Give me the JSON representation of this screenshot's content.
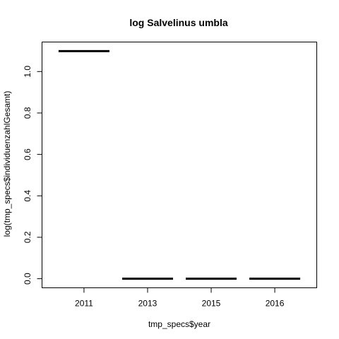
{
  "chart_data": {
    "type": "box",
    "title": "log Salvelinus umbla",
    "xlabel": "tmp_specs$year",
    "ylabel": "log(tmp_specs$individuenzahlGesamt)",
    "categories": [
      "2011",
      "2013",
      "2015",
      "2016"
    ],
    "values": [
      1.0986,
      0.0,
      0.0,
      0.0
    ],
    "yticks": [
      "0.0",
      "0.2",
      "0.4",
      "0.6",
      "0.8",
      "1.0"
    ],
    "ytick_values": [
      0.0,
      0.2,
      0.4,
      0.6,
      0.8,
      1.0
    ],
    "ylim": [
      -0.04394,
      1.14254
    ],
    "colors": {
      "median": "#000000",
      "frame": "#000000"
    }
  }
}
